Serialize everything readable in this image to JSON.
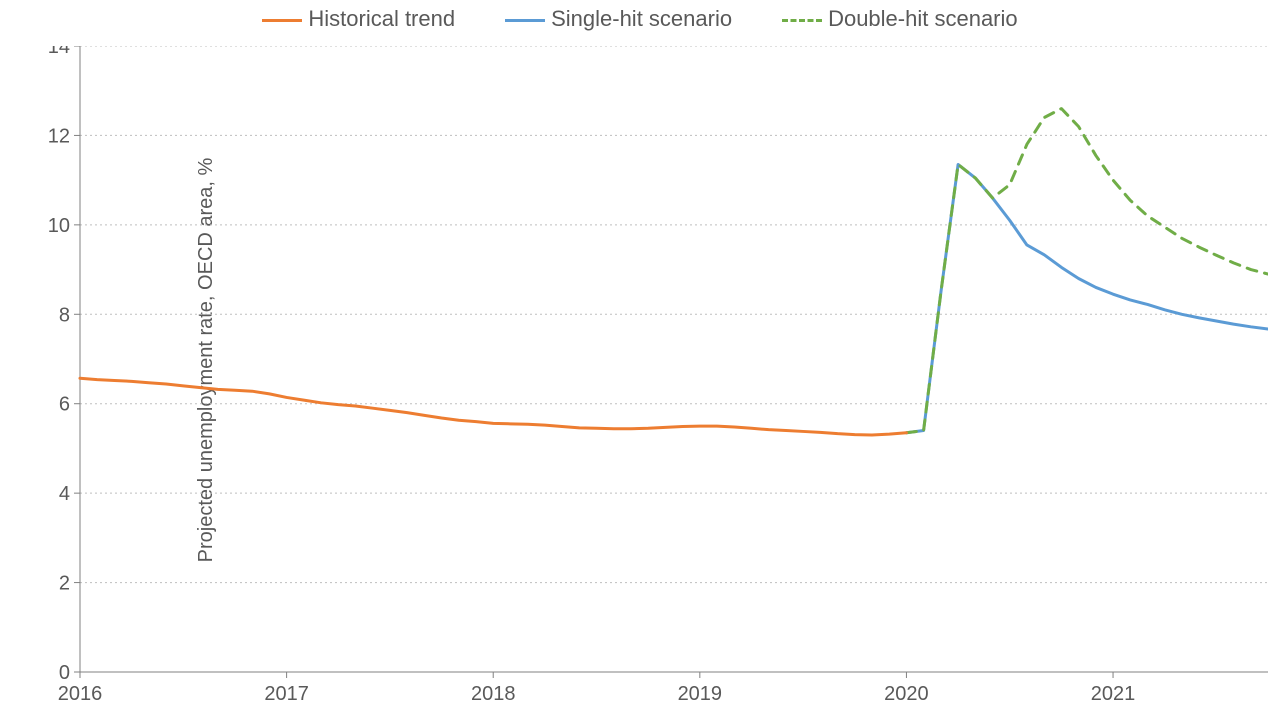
{
  "chart": {
    "type": "line",
    "background_color": "#ffffff",
    "grid_color": "#bfbfbf",
    "axis_line_color": "#808080",
    "text_color": "#595959",
    "y_title": "Projected unemployment rate, OECD area, %",
    "y_min": 0,
    "y_max": 14,
    "y_tick_step": 2,
    "x_min": 2016.0,
    "x_max": 2021.75,
    "x_ticks": [
      2016,
      2017,
      2018,
      2019,
      2020,
      2021
    ],
    "legend": [
      {
        "key": "historical",
        "label": "Historical trend",
        "color": "#ed7d31",
        "dash": "solid",
        "width": 3
      },
      {
        "key": "single",
        "label": "Single-hit scenario",
        "color": "#5b9bd5",
        "dash": "solid",
        "width": 3
      },
      {
        "key": "double",
        "label": "Double-hit scenario",
        "color": "#70ad47",
        "dash": "dashed",
        "width": 3
      }
    ],
    "series": {
      "historical": {
        "color": "#ed7d31",
        "dash": "solid",
        "width": 3,
        "points": [
          [
            2016.0,
            6.57
          ],
          [
            2016.083,
            6.54
          ],
          [
            2016.167,
            6.52
          ],
          [
            2016.25,
            6.5
          ],
          [
            2016.333,
            6.47
          ],
          [
            2016.417,
            6.44
          ],
          [
            2016.5,
            6.4
          ],
          [
            2016.583,
            6.36
          ],
          [
            2016.667,
            6.32
          ],
          [
            2016.75,
            6.3
          ],
          [
            2016.833,
            6.28
          ],
          [
            2016.917,
            6.22
          ],
          [
            2017.0,
            6.14
          ],
          [
            2017.083,
            6.08
          ],
          [
            2017.167,
            6.02
          ],
          [
            2017.25,
            5.98
          ],
          [
            2017.333,
            5.95
          ],
          [
            2017.417,
            5.9
          ],
          [
            2017.5,
            5.85
          ],
          [
            2017.583,
            5.8
          ],
          [
            2017.667,
            5.74
          ],
          [
            2017.75,
            5.68
          ],
          [
            2017.833,
            5.63
          ],
          [
            2017.917,
            5.6
          ],
          [
            2018.0,
            5.56
          ],
          [
            2018.083,
            5.55
          ],
          [
            2018.167,
            5.54
          ],
          [
            2018.25,
            5.52
          ],
          [
            2018.333,
            5.49
          ],
          [
            2018.417,
            5.46
          ],
          [
            2018.5,
            5.45
          ],
          [
            2018.583,
            5.44
          ],
          [
            2018.667,
            5.44
          ],
          [
            2018.75,
            5.45
          ],
          [
            2018.833,
            5.47
          ],
          [
            2018.917,
            5.49
          ],
          [
            2019.0,
            5.5
          ],
          [
            2019.083,
            5.5
          ],
          [
            2019.167,
            5.48
          ],
          [
            2019.25,
            5.45
          ],
          [
            2019.333,
            5.42
          ],
          [
            2019.417,
            5.4
          ],
          [
            2019.5,
            5.38
          ],
          [
            2019.583,
            5.36
          ],
          [
            2019.667,
            5.33
          ],
          [
            2019.75,
            5.31
          ],
          [
            2019.833,
            5.3
          ],
          [
            2019.917,
            5.32
          ],
          [
            2020.0,
            5.35
          ]
        ]
      },
      "single": {
        "color": "#5b9bd5",
        "dash": "solid",
        "width": 3,
        "points": [
          [
            2020.0,
            5.35
          ],
          [
            2020.083,
            5.4
          ],
          [
            2020.167,
            8.5
          ],
          [
            2020.25,
            11.35
          ],
          [
            2020.333,
            11.05
          ],
          [
            2020.417,
            10.6
          ],
          [
            2020.5,
            10.1
          ],
          [
            2020.583,
            9.55
          ],
          [
            2020.667,
            9.33
          ],
          [
            2020.75,
            9.05
          ],
          [
            2020.833,
            8.8
          ],
          [
            2020.917,
            8.6
          ],
          [
            2021.0,
            8.45
          ],
          [
            2021.083,
            8.32
          ],
          [
            2021.167,
            8.22
          ],
          [
            2021.25,
            8.1
          ],
          [
            2021.333,
            8.0
          ],
          [
            2021.417,
            7.92
          ],
          [
            2021.5,
            7.85
          ],
          [
            2021.583,
            7.78
          ],
          [
            2021.667,
            7.72
          ],
          [
            2021.75,
            7.67
          ]
        ]
      },
      "double": {
        "color": "#70ad47",
        "dash": "dashed",
        "width": 3,
        "points": [
          [
            2020.0,
            5.35
          ],
          [
            2020.083,
            5.4
          ],
          [
            2020.167,
            8.5
          ],
          [
            2020.25,
            11.35
          ],
          [
            2020.333,
            11.05
          ],
          [
            2020.417,
            10.6
          ],
          [
            2020.5,
            10.9
          ],
          [
            2020.583,
            11.8
          ],
          [
            2020.667,
            12.4
          ],
          [
            2020.75,
            12.6
          ],
          [
            2020.833,
            12.2
          ],
          [
            2020.917,
            11.55
          ],
          [
            2021.0,
            11.0
          ],
          [
            2021.083,
            10.55
          ],
          [
            2021.167,
            10.2
          ],
          [
            2021.25,
            9.95
          ],
          [
            2021.333,
            9.7
          ],
          [
            2021.417,
            9.5
          ],
          [
            2021.5,
            9.32
          ],
          [
            2021.583,
            9.15
          ],
          [
            2021.667,
            9.0
          ],
          [
            2021.75,
            8.9
          ]
        ]
      }
    }
  }
}
